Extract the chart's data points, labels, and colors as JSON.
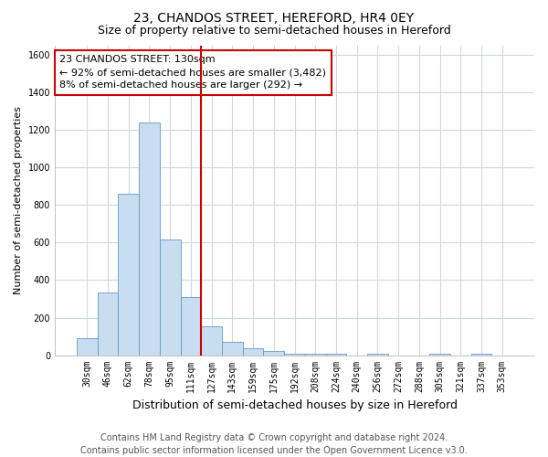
{
  "title": "23, CHANDOS STREET, HEREFORD, HR4 0EY",
  "subtitle": "Size of property relative to semi-detached houses in Hereford",
  "xlabel": "Distribution of semi-detached houses by size in Hereford",
  "ylabel": "Number of semi-detached properties",
  "categories": [
    "30sqm",
    "46sqm",
    "62sqm",
    "78sqm",
    "95sqm",
    "111sqm",
    "127sqm",
    "143sqm",
    "159sqm",
    "175sqm",
    "192sqm",
    "208sqm",
    "224sqm",
    "240sqm",
    "256sqm",
    "272sqm",
    "288sqm",
    "305sqm",
    "321sqm",
    "337sqm",
    "353sqm"
  ],
  "values": [
    90,
    335,
    860,
    1240,
    615,
    310,
    155,
    70,
    35,
    20,
    10,
    10,
    10,
    0,
    10,
    0,
    0,
    10,
    0,
    10,
    0
  ],
  "bar_color": "#c8ddf0",
  "bar_edge_color": "#6699cc",
  "vline_x": 5.5,
  "vline_color": "#cc0000",
  "annotation_text": "23 CHANDOS STREET: 130sqm\n← 92% of semi-detached houses are smaller (3,482)\n8% of semi-detached houses are larger (292) →",
  "annotation_box_color": "#ffffff",
  "annotation_box_edge": "#cc0000",
  "ylim": [
    0,
    1650
  ],
  "yticks": [
    0,
    200,
    400,
    600,
    800,
    1000,
    1200,
    1400,
    1600
  ],
  "footer_line1": "Contains HM Land Registry data © Crown copyright and database right 2024.",
  "footer_line2": "Contains public sector information licensed under the Open Government Licence v3.0.",
  "plot_bg_color": "#ffffff",
  "fig_bg_color": "#ffffff",
  "grid_color": "#d0d8e4",
  "title_fontsize": 10,
  "subtitle_fontsize": 9,
  "xlabel_fontsize": 9,
  "ylabel_fontsize": 8,
  "tick_fontsize": 7,
  "footer_fontsize": 7,
  "annot_fontsize": 8
}
